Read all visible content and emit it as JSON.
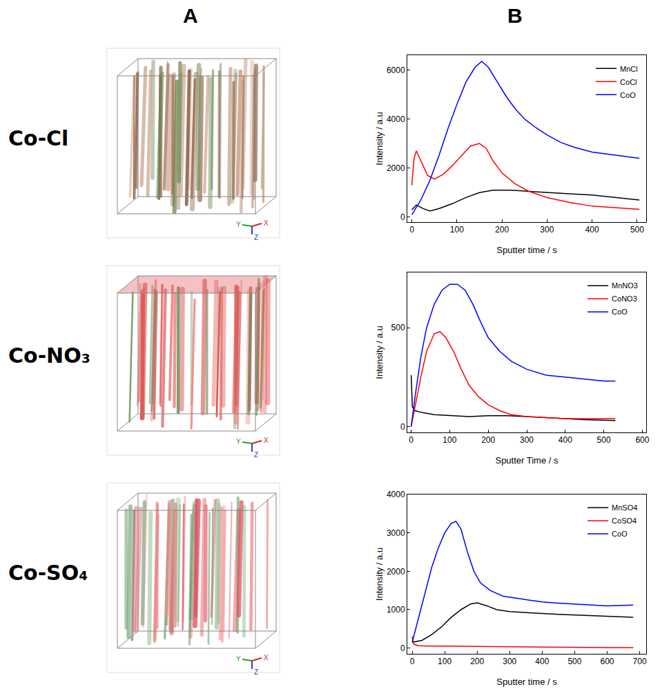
{
  "columns": [
    "A",
    "B"
  ],
  "rows": [
    {
      "label": "Co-Cl",
      "render_axes": [
        "Y",
        "Z",
        "X"
      ]
    },
    {
      "label": "Co-NO₃",
      "render_axes": [
        "Y",
        "Z",
        "X"
      ]
    },
    {
      "label": "Co-SO₄",
      "render_axes": [
        "Y",
        "Z",
        "X"
      ]
    }
  ],
  "chart_data": [
    {
      "type": "line",
      "x_label": "Sputter time / s",
      "y_label": "Intensity / a.u",
      "xlim": [
        -10,
        520
      ],
      "xticks": [
        0,
        100,
        200,
        300,
        400,
        500
      ],
      "ylim": [
        -200,
        6600
      ],
      "yticks": [
        0,
        2000,
        4000,
        6000
      ],
      "grid": false,
      "legend": "upper right",
      "series": [
        {
          "name": "MnCl",
          "color": "#000000",
          "x": [
            0,
            10,
            25,
            40,
            60,
            90,
            120,
            150,
            180,
            220,
            260,
            300,
            350,
            400,
            450,
            505
          ],
          "values": [
            300,
            500,
            350,
            250,
            350,
            550,
            800,
            1000,
            1100,
            1100,
            1050,
            1000,
            950,
            900,
            800,
            700
          ]
        },
        {
          "name": "CoCl",
          "color": "#ff0000",
          "x": [
            0,
            5,
            10,
            20,
            35,
            50,
            70,
            90,
            110,
            130,
            150,
            165,
            180,
            200,
            230,
            260,
            300,
            350,
            400,
            450,
            505
          ],
          "values": [
            1300,
            2400,
            2700,
            2300,
            1700,
            1550,
            1750,
            2100,
            2500,
            2900,
            3000,
            2800,
            2300,
            1800,
            1350,
            1050,
            800,
            600,
            450,
            380,
            320
          ]
        },
        {
          "name": "CoO",
          "color": "#0000ff",
          "x": [
            0,
            20,
            40,
            60,
            80,
            100,
            120,
            140,
            155,
            170,
            190,
            210,
            230,
            250,
            275,
            300,
            330,
            360,
            400,
            440,
            480,
            505
          ],
          "values": [
            100,
            700,
            1500,
            2500,
            3600,
            4600,
            5500,
            6100,
            6350,
            6100,
            5500,
            4900,
            4400,
            4000,
            3650,
            3350,
            3050,
            2850,
            2650,
            2550,
            2450,
            2400
          ]
        }
      ]
    },
    {
      "type": "line",
      "x_label": "Sputter Time / s",
      "y_label": "Intensity / a.u",
      "xlim": [
        -10,
        610
      ],
      "xticks": [
        0,
        100,
        200,
        300,
        400,
        500,
        600
      ],
      "ylim": [
        -30,
        780
      ],
      "yticks": [
        0,
        500
      ],
      "grid": false,
      "legend": "upper right",
      "series": [
        {
          "name": "MnNO3",
          "color": "#000000",
          "x": [
            0,
            3,
            10,
            30,
            60,
            100,
            150,
            200,
            250,
            300,
            350,
            400,
            450,
            530
          ],
          "values": [
            260,
            100,
            80,
            70,
            60,
            55,
            50,
            55,
            55,
            50,
            45,
            40,
            35,
            30
          ]
        },
        {
          "name": "CoNO3",
          "color": "#ff0000",
          "x": [
            0,
            10,
            25,
            40,
            60,
            75,
            90,
            110,
            130,
            150,
            175,
            200,
            230,
            260,
            300,
            350,
            400,
            450,
            530
          ],
          "values": [
            0,
            100,
            250,
            380,
            470,
            480,
            450,
            380,
            290,
            210,
            150,
            110,
            80,
            60,
            50,
            45,
            40,
            40,
            40
          ]
        },
        {
          "name": "CoO",
          "color": "#0000ff",
          "x": [
            0,
            10,
            25,
            40,
            60,
            80,
            100,
            120,
            140,
            160,
            180,
            200,
            230,
            260,
            300,
            350,
            400,
            450,
            500,
            530
          ],
          "values": [
            0,
            150,
            350,
            500,
            620,
            690,
            720,
            720,
            690,
            620,
            530,
            450,
            380,
            330,
            290,
            260,
            250,
            240,
            230,
            230
          ]
        }
      ]
    },
    {
      "type": "line",
      "x_label": "Sputter time / s",
      "y_label": "Intensity / a.u",
      "xlim": [
        -15,
        720
      ],
      "xticks": [
        0,
        100,
        200,
        300,
        400,
        500,
        600,
        700
      ],
      "ylim": [
        -150,
        4000
      ],
      "yticks": [
        0,
        1000,
        2000,
        3000,
        4000
      ],
      "grid": false,
      "legend": "upper right",
      "series": [
        {
          "name": "MnSO4",
          "color": "#000000",
          "x": [
            0,
            30,
            60,
            90,
            120,
            150,
            180,
            200,
            230,
            260,
            300,
            350,
            400,
            450,
            500,
            550,
            600,
            680
          ],
          "values": [
            150,
            200,
            350,
            550,
            800,
            1000,
            1150,
            1180,
            1100,
            1000,
            950,
            920,
            900,
            880,
            860,
            840,
            820,
            800
          ]
        },
        {
          "name": "CoSO4",
          "color": "#ff0000",
          "x": [
            0,
            5,
            20,
            50,
            100,
            200,
            300,
            400,
            500,
            600,
            680
          ],
          "values": [
            300,
            100,
            60,
            50,
            50,
            40,
            30,
            20,
            15,
            10,
            10
          ]
        },
        {
          "name": "CoO",
          "color": "#0000ff",
          "x": [
            0,
            20,
            40,
            60,
            80,
            100,
            120,
            135,
            150,
            170,
            190,
            210,
            240,
            280,
            320,
            360,
            400,
            450,
            500,
            550,
            600,
            680
          ],
          "values": [
            150,
            800,
            1500,
            2100,
            2600,
            3000,
            3250,
            3300,
            3100,
            2500,
            2000,
            1700,
            1500,
            1350,
            1300,
            1250,
            1200,
            1170,
            1150,
            1130,
            1100,
            1120
          ]
        }
      ]
    }
  ]
}
